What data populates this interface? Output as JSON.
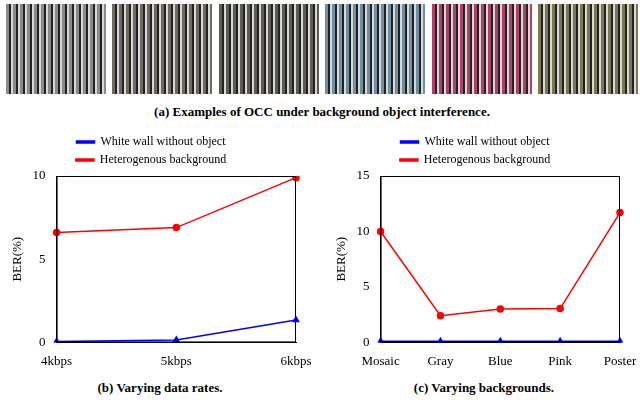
{
  "figure_a": {
    "caption": "(a) Examples of OCC under background object interference."
  },
  "chart_data": [
    {
      "type": "line",
      "caption": "(b) Varying data rates.",
      "y_label": "BER(%)",
      "categories": [
        "4kbps",
        "5kbps",
        "6kbps"
      ],
      "series": [
        {
          "name": "White wall without object",
          "color": "#0000ff",
          "marker": "triangle",
          "values": [
            0.05,
            0.15,
            1.35
          ]
        },
        {
          "name": "Heterogenous background",
          "color": "#ff0000",
          "marker": "circle",
          "values": [
            6.6,
            6.9,
            9.9
          ]
        }
      ],
      "ylim": [
        0,
        10
      ],
      "yticks": [
        0,
        5,
        10
      ],
      "grid": false,
      "legend": "top"
    },
    {
      "type": "line",
      "caption": "(c) Varying backgrounds.",
      "y_label": "BER(%)",
      "categories": [
        "Mosaic",
        "Gray",
        "Blue",
        "Pink",
        "Poster"
      ],
      "series": [
        {
          "name": "White wall without object",
          "color": "#0000ff",
          "marker": "triangle",
          "values": [
            0.1,
            0.1,
            0.1,
            0.1,
            0.1
          ]
        },
        {
          "name": "Heterogenous background",
          "color": "#ff0000",
          "marker": "circle",
          "values": [
            10,
            2.4,
            3.0,
            3.05,
            11.7
          ]
        }
      ],
      "ylim": [
        0,
        15
      ],
      "yticks": [
        0,
        5,
        10,
        15
      ],
      "grid": false,
      "legend": "top"
    }
  ]
}
